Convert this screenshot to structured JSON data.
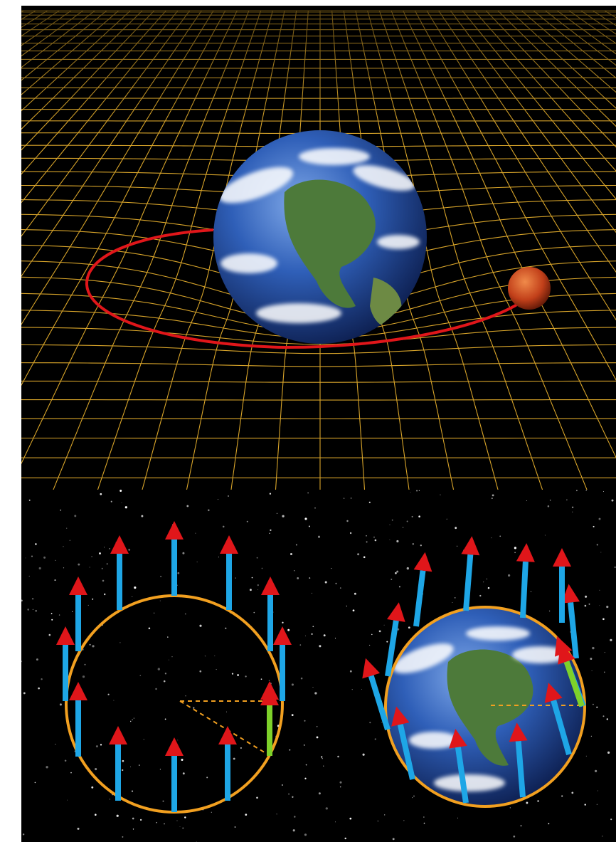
{
  "image": {
    "panels": [
      "spacetime-curvature",
      "vector-transport"
    ]
  },
  "colors": {
    "background": "#ffffff",
    "space": "#000000",
    "grid": "#d9a52a",
    "orbit": "#e0161a",
    "moon": "#c2401a",
    "earth_ocean": "#2f5fb8",
    "earth_land": "#4d7a3a",
    "circle": "#f2a020",
    "arrow_shaft": "#1ea6e6",
    "arrow_head": "#e0161a",
    "highlight_shaft": "#7ed12a",
    "dashed": "#f2a020"
  },
  "icons": {
    "planet": "earth-icon",
    "satellite": "moon-icon"
  }
}
